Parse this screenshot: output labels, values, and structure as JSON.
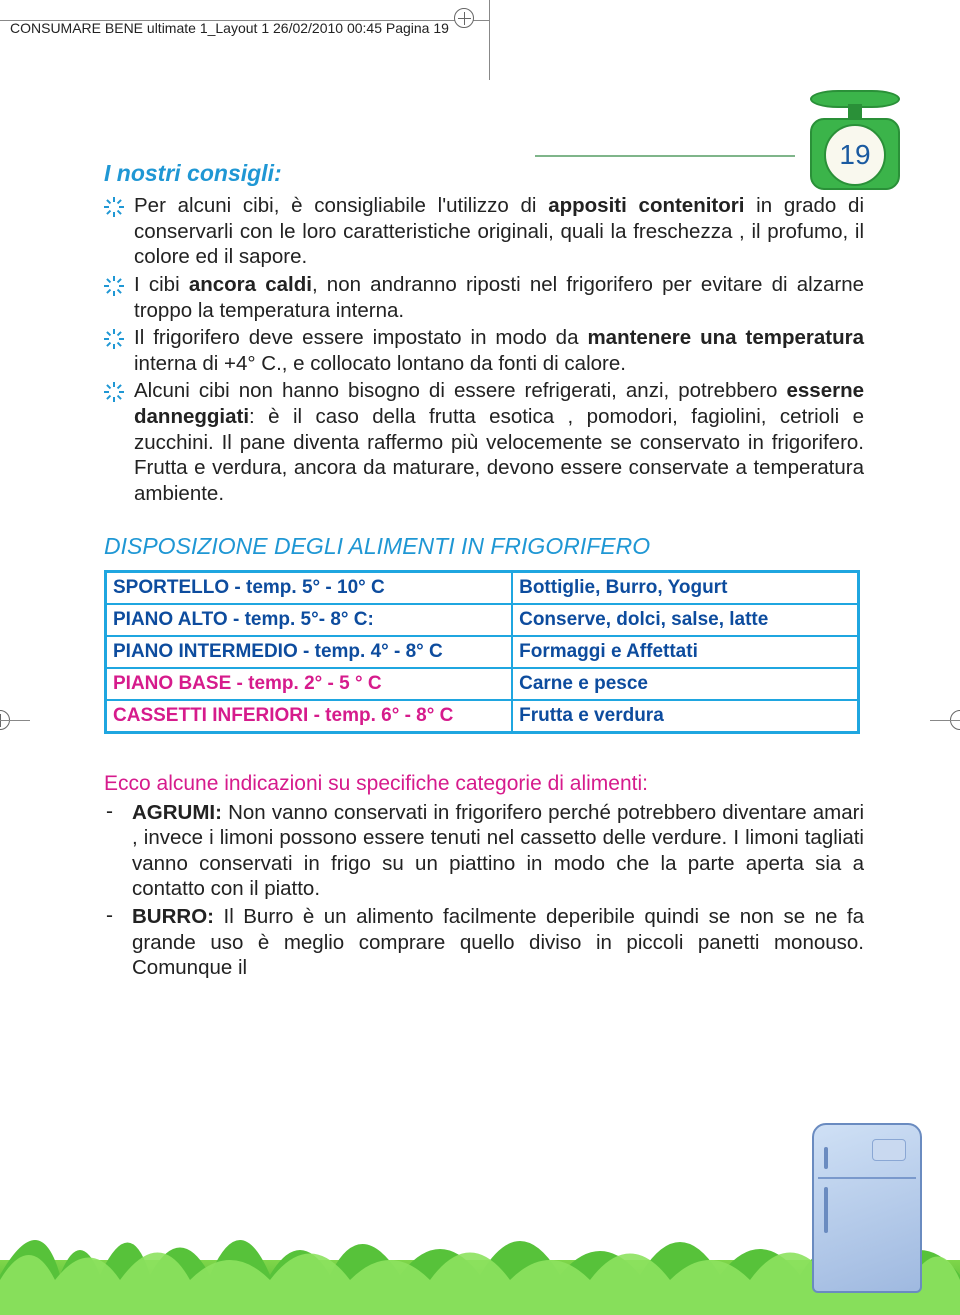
{
  "header": {
    "crop_text": "CONSUMARE BENE ultimate 1_Layout 1  26/02/2010  00:45  Pagina 19"
  },
  "page_number": "19",
  "colors": {
    "brand_blue": "#1f97d4",
    "deep_blue": "#0d4c9e",
    "magenta": "#d61b8c",
    "green": "#3bb44a",
    "table_border": "#1fa6e0"
  },
  "tips_section": {
    "title": "I nostri consigli:",
    "items": [
      "Per alcuni cibi, è consigliabile l'utilizzo di <b>appositi con­tenitori</b> in grado di conservarli con le loro caratteristi­che originali, quali la freschezza , il profumo, il colore ed il sapore.",
      "I cibi <b>ancora caldi</b>, non andranno riposti nel frigorifero per evitare di alzarne troppo la temperatura interna.",
      " Il frigorifero deve essere impostato in modo da <b>man­tenere una temperatura</b> interna di +4° C., e collo­cato lontano da fonti di calore.",
      " Alcuni cibi non hanno bisogno di essere refrigerati, anzi, potrebbero <b>esserne danneggiati</b>: è il caso della frutta esotica , pomodori, fagiolini, cetrioli e zucchini. Il pane diventa raffermo più velocemente se conser­vato in frigorifero. Frutta e verdura, ancora da matu­rare, devono essere conservate a temperatura ambiente."
    ]
  },
  "table_section": {
    "title": "DISPOSIZIONE DEGLI ALIMENTI IN FRIGORIFERO",
    "rows": [
      {
        "loc": "SPORTELLO - temp. 5° - 10° C",
        "food": "Bottiglie, Burro, Yogurt",
        "loc_color": "#0d4c9e"
      },
      {
        "loc": "PIANO ALTO - temp. 5°- 8° C:",
        "food": "Conserve, dolci, salse, latte",
        "loc_color": "#0d4c9e"
      },
      {
        "loc": "PIANO INTERMEDIO - temp. 4° - 8° C",
        "food": "Formaggi e Affettati",
        "loc_color": "#0d4c9e"
      },
      {
        "loc": "PIANO BASE - temp. 2° - 5 ° C",
        "food": "Carne e pesce",
        "loc_color": "#d61b8c"
      },
      {
        "loc": "CASSETTI INFERIORI - temp. 6° - 8° C",
        "food": "Frutta e verdura",
        "loc_color": "#d61b8c"
      }
    ]
  },
  "categories_section": {
    "intro": "Ecco alcune indicazioni su specifiche categorie di alimenti:",
    "items": [
      {
        "name": "AGRUMI:",
        "text": " Non vanno conservati in frigorifero perché potrebbero diventare amari , invece i limoni possono essere tenuti nel cassetto delle verdure. I limoni ta­gliati vanno conservati in frigo su un piattino in modo che la parte aperta sia  a contatto con il piatto."
      },
      {
        "name": "BURRO:",
        "text": " Il Burro è un alimento facilmente deperibile quindi se non se ne fa grande uso è meglio comprare quello diviso in piccoli panetti monouso. Comunque il"
      }
    ]
  }
}
